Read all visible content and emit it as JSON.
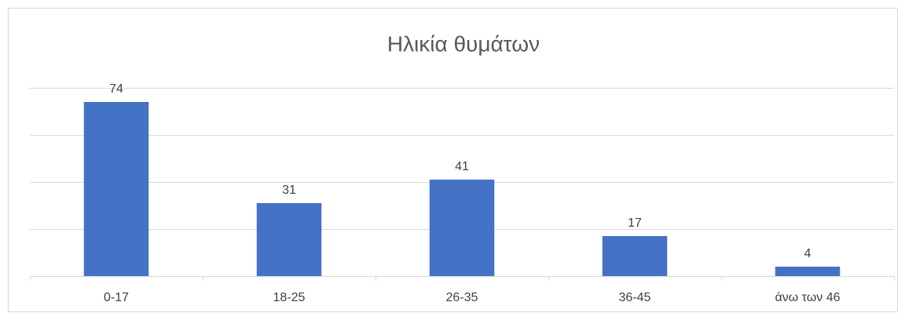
{
  "chart_data": {
    "type": "bar",
    "title": "Ηλικία θυμάτων",
    "categories": [
      "0-17",
      "18-25",
      "26-35",
      "36-45",
      "άνω των 46"
    ],
    "values": [
      74,
      31,
      41,
      17,
      4
    ],
    "color": "#4472c4",
    "ylim": [
      0,
      80
    ],
    "yticks": [
      0,
      20,
      40,
      60,
      80
    ],
    "grid": true
  }
}
